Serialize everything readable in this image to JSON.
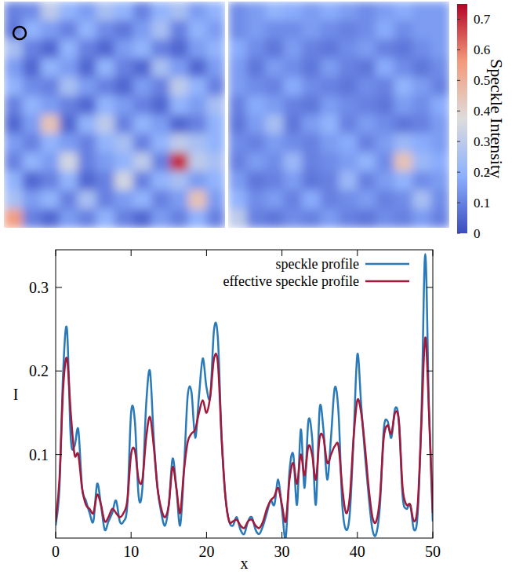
{
  "chart_data": [
    {
      "type": "heatmap",
      "color_range": [
        0,
        0.75
      ],
      "cells": [
        [
          0.1,
          0.12,
          0.3,
          0.2,
          0.15,
          0.25,
          0.2,
          0.1,
          0.2,
          0.25,
          0.15,
          0.2
        ],
        [
          0.08,
          0.2,
          0.15,
          0.1,
          0.2,
          0.12,
          0.08,
          0.15,
          0.25,
          0.1,
          0.2,
          0.15
        ],
        [
          0.25,
          0.1,
          0.05,
          0.2,
          0.1,
          0.05,
          0.15,
          0.2,
          0.1,
          0.05,
          0.15,
          0.2
        ],
        [
          0.15,
          0.05,
          0.2,
          0.15,
          0.05,
          0.2,
          0.1,
          0.05,
          0.25,
          0.15,
          0.05,
          0.15
        ],
        [
          0.2,
          0.12,
          0.1,
          0.25,
          0.15,
          0.1,
          0.05,
          0.15,
          0.1,
          0.3,
          0.2,
          0.1
        ],
        [
          0.1,
          0.2,
          0.15,
          0.1,
          0.05,
          0.2,
          0.15,
          0.1,
          0.05,
          0.2,
          0.15,
          0.25
        ],
        [
          0.05,
          0.15,
          0.45,
          0.05,
          0.2,
          0.3,
          0.1,
          0.2,
          0.15,
          0.05,
          0.1,
          0.2
        ],
        [
          0.15,
          0.1,
          0.2,
          0.15,
          0.1,
          0.2,
          0.25,
          0.1,
          0.2,
          0.3,
          0.25,
          0.2
        ],
        [
          0.1,
          0.2,
          0.15,
          0.35,
          0.1,
          0.15,
          0.2,
          0.3,
          0.1,
          0.7,
          0.3,
          0.25
        ],
        [
          0.2,
          0.05,
          0.1,
          0.2,
          0.05,
          0.1,
          0.35,
          0.1,
          0.2,
          0.25,
          0.15,
          0.2
        ],
        [
          0.25,
          0.15,
          0.2,
          0.1,
          0.25,
          0.1,
          0.15,
          0.2,
          0.1,
          0.15,
          0.45,
          0.15
        ],
        [
          0.55,
          0.1,
          0.05,
          0.15,
          0.1,
          0.2,
          0.1,
          0.05,
          0.15,
          0.1,
          0.2,
          0.1
        ]
      ]
    },
    {
      "type": "heatmap",
      "color_range": [
        0,
        0.75
      ],
      "color_ticks": [
        0,
        0.1,
        0.2,
        0.3,
        0.4,
        0.5,
        0.6,
        0.7
      ],
      "colorbar_label": "Speckle Intensity",
      "cells": [
        [
          0.12,
          0.15,
          0.2,
          0.18,
          0.15,
          0.18,
          0.15,
          0.12,
          0.15,
          0.18,
          0.15,
          0.15
        ],
        [
          0.12,
          0.15,
          0.12,
          0.12,
          0.15,
          0.12,
          0.1,
          0.12,
          0.18,
          0.12,
          0.15,
          0.15
        ],
        [
          0.18,
          0.12,
          0.08,
          0.15,
          0.1,
          0.08,
          0.12,
          0.15,
          0.1,
          0.08,
          0.12,
          0.15
        ],
        [
          0.15,
          0.08,
          0.15,
          0.12,
          0.08,
          0.15,
          0.1,
          0.08,
          0.18,
          0.12,
          0.08,
          0.12
        ],
        [
          0.15,
          0.12,
          0.1,
          0.18,
          0.12,
          0.1,
          0.08,
          0.12,
          0.1,
          0.2,
          0.15,
          0.1
        ],
        [
          0.1,
          0.18,
          0.15,
          0.1,
          0.08,
          0.15,
          0.12,
          0.1,
          0.08,
          0.15,
          0.12,
          0.18
        ],
        [
          0.08,
          0.15,
          0.25,
          0.08,
          0.15,
          0.2,
          0.1,
          0.15,
          0.12,
          0.08,
          0.1,
          0.15
        ],
        [
          0.12,
          0.1,
          0.15,
          0.12,
          0.1,
          0.15,
          0.18,
          0.1,
          0.15,
          0.22,
          0.18,
          0.15
        ],
        [
          0.1,
          0.15,
          0.12,
          0.22,
          0.1,
          0.12,
          0.15,
          0.2,
          0.12,
          0.45,
          0.22,
          0.18
        ],
        [
          0.15,
          0.08,
          0.1,
          0.15,
          0.08,
          0.1,
          0.22,
          0.1,
          0.15,
          0.2,
          0.12,
          0.15
        ],
        [
          0.2,
          0.12,
          0.15,
          0.1,
          0.18,
          0.1,
          0.12,
          0.15,
          0.1,
          0.12,
          0.25,
          0.12
        ],
        [
          0.3,
          0.1,
          0.08,
          0.12,
          0.1,
          0.15,
          0.1,
          0.08,
          0.12,
          0.1,
          0.15,
          0.1
        ]
      ]
    },
    {
      "type": "line",
      "xlabel": "x",
      "ylabel": "I",
      "xlim": [
        0,
        50
      ],
      "ylim": [
        0,
        0.345
      ],
      "xticks": [
        0,
        10,
        20,
        30,
        40,
        50
      ],
      "yticks": [
        0.1,
        0.2,
        0.3
      ],
      "legend": "upper right",
      "x": [
        0,
        0.5,
        1,
        1.5,
        2,
        2.5,
        3,
        3.5,
        4,
        4.5,
        5,
        5.5,
        6,
        6.5,
        7,
        7.5,
        8,
        8.5,
        9,
        9.5,
        10,
        10.5,
        11,
        11.5,
        12,
        12.5,
        13,
        13.5,
        14,
        14.5,
        15,
        15.5,
        16,
        16.5,
        17,
        17.5,
        18,
        18.5,
        19,
        19.5,
        20,
        20.5,
        21,
        21.5,
        22,
        22.5,
        23,
        23.5,
        24,
        24.5,
        25,
        25.5,
        26,
        26.5,
        27,
        27.5,
        28,
        28.5,
        29,
        29.5,
        30,
        30.5,
        31,
        31.5,
        32,
        32.5,
        33,
        33.5,
        34,
        34.5,
        35,
        35.5,
        36,
        36.5,
        37,
        37.5,
        38,
        38.5,
        39,
        39.5,
        40,
        40.5,
        41,
        41.5,
        42,
        42.5,
        43,
        43.5,
        44,
        44.5,
        45,
        45.5,
        46,
        46.5,
        47,
        47.5,
        48,
        48.5,
        49,
        49.5,
        50
      ],
      "series": [
        {
          "name": "speckle profile",
          "color": "#2a7ab9",
          "values": [
            0.015,
            0.06,
            0.2,
            0.25,
            0.12,
            0.11,
            0.13,
            0.06,
            0.045,
            0.03,
            0.02,
            0.065,
            0.04,
            0.01,
            0.02,
            0.03,
            0.045,
            0.02,
            0.02,
            0.04,
            0.15,
            0.14,
            0.05,
            0.06,
            0.16,
            0.2,
            0.12,
            0.06,
            0.03,
            0.015,
            0.04,
            0.095,
            0.06,
            0.015,
            0.08,
            0.17,
            0.175,
            0.12,
            0.17,
            0.215,
            0.18,
            0.17,
            0.25,
            0.24,
            0.12,
            0.05,
            0.02,
            0.015,
            0.025,
            0.01,
            0.005,
            0.02,
            0.025,
            0.01,
            0.005,
            0.015,
            0.03,
            0.045,
            0.04,
            0.07,
            0.035,
            0,
            0.08,
            0.1,
            0.04,
            0.13,
            0.06,
            0.14,
            0.12,
            0.04,
            0.155,
            0.13,
            0.07,
            0.12,
            0.18,
            0.15,
            0.04,
            0.01,
            0.03,
            0.12,
            0.22,
            0.16,
            0.1,
            0.05,
            0.01,
            0.005,
            0.04,
            0.13,
            0.14,
            0.12,
            0.155,
            0.14,
            0.05,
            0.035,
            0.04,
            0.01,
            0.03,
            0.15,
            0.34,
            0.15,
            0.02
          ]
        },
        {
          "name": "effective speckle profile",
          "color": "#a3193a",
          "values": [
            0.02,
            0.07,
            0.18,
            0.215,
            0.15,
            0.1,
            0.1,
            0.06,
            0.04,
            0.035,
            0.03,
            0.052,
            0.04,
            0.02,
            0.025,
            0.035,
            0.03,
            0.025,
            0.03,
            0.045,
            0.1,
            0.105,
            0.07,
            0.07,
            0.12,
            0.145,
            0.11,
            0.06,
            0.035,
            0.025,
            0.04,
            0.085,
            0.06,
            0.03,
            0.08,
            0.115,
            0.125,
            0.13,
            0.15,
            0.165,
            0.15,
            0.17,
            0.215,
            0.21,
            0.12,
            0.05,
            0.02,
            0.02,
            0.022,
            0.015,
            0.012,
            0.02,
            0.022,
            0.015,
            0.012,
            0.02,
            0.035,
            0.045,
            0.05,
            0.06,
            0.04,
            0.02,
            0.07,
            0.09,
            0.065,
            0.1,
            0.075,
            0.11,
            0.1,
            0.07,
            0.12,
            0.12,
            0.09,
            0.1,
            0.11,
            0.11,
            0.06,
            0.03,
            0.05,
            0.12,
            0.165,
            0.15,
            0.11,
            0.06,
            0.025,
            0.02,
            0.05,
            0.12,
            0.135,
            0.125,
            0.15,
            0.14,
            0.06,
            0.04,
            0.04,
            0.02,
            0.04,
            0.14,
            0.24,
            0.15,
            0.03
          ]
        }
      ]
    }
  ]
}
